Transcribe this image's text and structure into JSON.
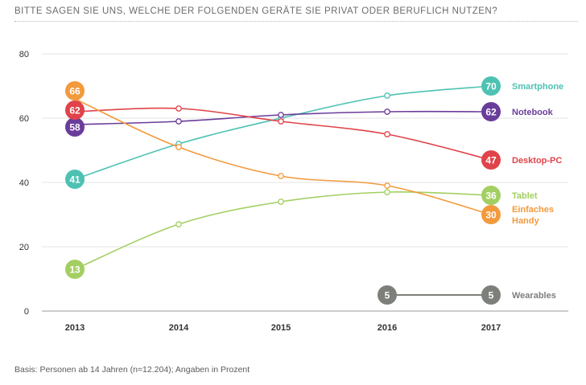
{
  "title": "BITTE SAGEN SIE UNS, WELCHE DER FOLGENDEN GERÄTE SIE PRIVAT ODER BERUFLICH NUTZEN?",
  "footnote": "Basis: Personen ab 14 Jahren (n=12.204); Angaben in Prozent",
  "chart_data": {
    "type": "line",
    "title": "BITTE SAGEN SIE UNS, WELCHE DER FOLGENDEN GERÄTE SIE PRIVAT ODER BERUFLICH NUTZEN?",
    "xlabel": "",
    "ylabel": "",
    "categories": [
      "2013",
      "2014",
      "2015",
      "2016",
      "2017"
    ],
    "ylim": [
      0,
      80
    ],
    "yticks": [
      0,
      20,
      40,
      60,
      80
    ],
    "grid": true,
    "series": [
      {
        "name": "Smartphone",
        "label_lines": [
          "Smartphone"
        ],
        "color": "#4dc2b3",
        "values": [
          41,
          52,
          60,
          67,
          70
        ],
        "labeled": [
          true,
          false,
          false,
          false,
          true
        ]
      },
      {
        "name": "Notebook",
        "label_lines": [
          "Notebook"
        ],
        "color": "#6a3d9a",
        "values": [
          58,
          59,
          61,
          62,
          62
        ],
        "labeled": [
          true,
          false,
          false,
          false,
          true
        ]
      },
      {
        "name": "Desktop-PC",
        "label_lines": [
          "Desktop-PC"
        ],
        "color": "#e0434a",
        "values": [
          62,
          63,
          59,
          55,
          47
        ],
        "labeled": [
          true,
          false,
          false,
          false,
          true
        ]
      },
      {
        "name": "Tablet",
        "label_lines": [
          "Tablet"
        ],
        "color": "#a3cf62",
        "values": [
          13,
          27,
          34,
          37,
          36
        ],
        "labeled": [
          true,
          false,
          false,
          false,
          true
        ]
      },
      {
        "name": "Einfaches Handy",
        "label_lines": [
          "Einfaches",
          "Handy"
        ],
        "color": "#f39a3d",
        "values": [
          66,
          51,
          42,
          39,
          30
        ],
        "labeled": [
          true,
          false,
          false,
          false,
          true
        ]
      },
      {
        "name": "Wearables",
        "label_lines": [
          "Wearables"
        ],
        "color": "#7d7f7a",
        "values": [
          null,
          null,
          null,
          5,
          5
        ],
        "labeled": [
          false,
          false,
          false,
          true,
          true
        ],
        "flat": true
      }
    ]
  }
}
